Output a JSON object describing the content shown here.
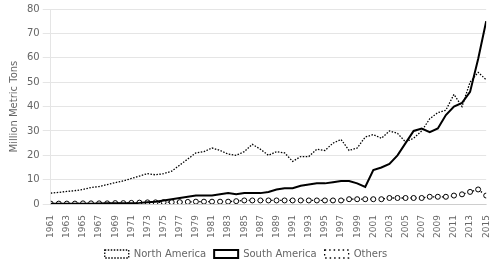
{
  "chart_data": {
    "type": "line",
    "y_label": "Million Metric Tons",
    "x": [
      1961,
      1962,
      1963,
      1964,
      1965,
      1966,
      1967,
      1968,
      1969,
      1970,
      1971,
      1972,
      1973,
      1974,
      1975,
      1976,
      1977,
      1978,
      1979,
      1980,
      1981,
      1982,
      1983,
      1984,
      1985,
      1986,
      1987,
      1988,
      1989,
      1990,
      1991,
      1992,
      1993,
      1994,
      1995,
      1996,
      1997,
      1998,
      1999,
      2000,
      2001,
      2002,
      2003,
      2004,
      2005,
      2006,
      2007,
      2008,
      2009,
      2010,
      2011,
      2012,
      2013,
      2014,
      2015
    ],
    "series": [
      {
        "name": "North America",
        "color": "#000000",
        "line_style": "dotted",
        "marker": "none",
        "values": [
          4.5,
          4.8,
          5.2,
          5.5,
          6.0,
          6.8,
          7.2,
          8.0,
          8.8,
          9.5,
          10.5,
          11.5,
          12.5,
          12.0,
          12.5,
          13.5,
          16.0,
          18.5,
          21.0,
          21.5,
          23.0,
          22.0,
          20.5,
          20.0,
          21.5,
          24.5,
          22.5,
          20.0,
          21.5,
          21.0,
          17.5,
          19.5,
          19.5,
          22.5,
          22.0,
          25.0,
          26.5,
          22.0,
          23.0,
          27.5,
          28.5,
          27.0,
          30.0,
          29.0,
          25.5,
          27.0,
          30.0,
          35.0,
          37.5,
          38.5,
          45.0,
          40.0,
          50.0,
          54.0,
          51.0
        ]
      },
      {
        "name": "South America",
        "color": "#000000",
        "line_style": "solid",
        "marker": "none",
        "values": [
          0.1,
          0.1,
          0.1,
          0.1,
          0.1,
          0.1,
          0.2,
          0.3,
          0.3,
          0.3,
          0.3,
          0.5,
          0.8,
          1.0,
          1.5,
          2.0,
          2.5,
          3.0,
          3.5,
          3.5,
          3.5,
          4.0,
          4.5,
          4.0,
          4.5,
          4.5,
          4.5,
          5.0,
          6.0,
          6.5,
          6.5,
          7.5,
          8.0,
          8.5,
          8.5,
          9.0,
          9.5,
          9.5,
          8.5,
          7.0,
          14.0,
          15.0,
          16.5,
          20.0,
          25.0,
          30.0,
          31.0,
          29.5,
          31.0,
          36.5,
          40.0,
          41.5,
          46.0,
          59.5,
          75.0
        ]
      },
      {
        "name": "Others",
        "color": "#000000",
        "line_style": "dotted",
        "marker": "circle",
        "values": [
          0.2,
          0.2,
          0.2,
          0.2,
          0.3,
          0.3,
          0.3,
          0.3,
          0.4,
          0.4,
          0.5,
          0.6,
          0.7,
          0.7,
          0.8,
          0.8,
          0.8,
          0.9,
          1.0,
          1.0,
          1.0,
          1.0,
          1.0,
          1.2,
          1.5,
          1.5,
          1.5,
          1.5,
          1.5,
          1.5,
          1.5,
          1.5,
          1.5,
          1.5,
          1.5,
          1.5,
          1.5,
          2.0,
          2.0,
          2.0,
          2.0,
          2.0,
          2.5,
          2.5,
          2.5,
          2.5,
          2.5,
          3.0,
          3.0,
          3.0,
          3.5,
          4.0,
          5.0,
          6.0,
          3.5
        ]
      }
    ],
    "xlim": [
      1961,
      2015
    ],
    "xticks": [
      1961,
      1963,
      1965,
      1967,
      1969,
      1971,
      1973,
      1975,
      1977,
      1979,
      1981,
      1983,
      1985,
      1987,
      1989,
      1991,
      1993,
      1995,
      1997,
      1999,
      2001,
      2003,
      2005,
      2007,
      2009,
      2011,
      2013,
      2015
    ],
    "ylim": [
      0,
      80
    ],
    "yticks": [
      0,
      10,
      20,
      30,
      40,
      50,
      60,
      70,
      80
    ],
    "grid": "y",
    "legend": "bottom"
  }
}
